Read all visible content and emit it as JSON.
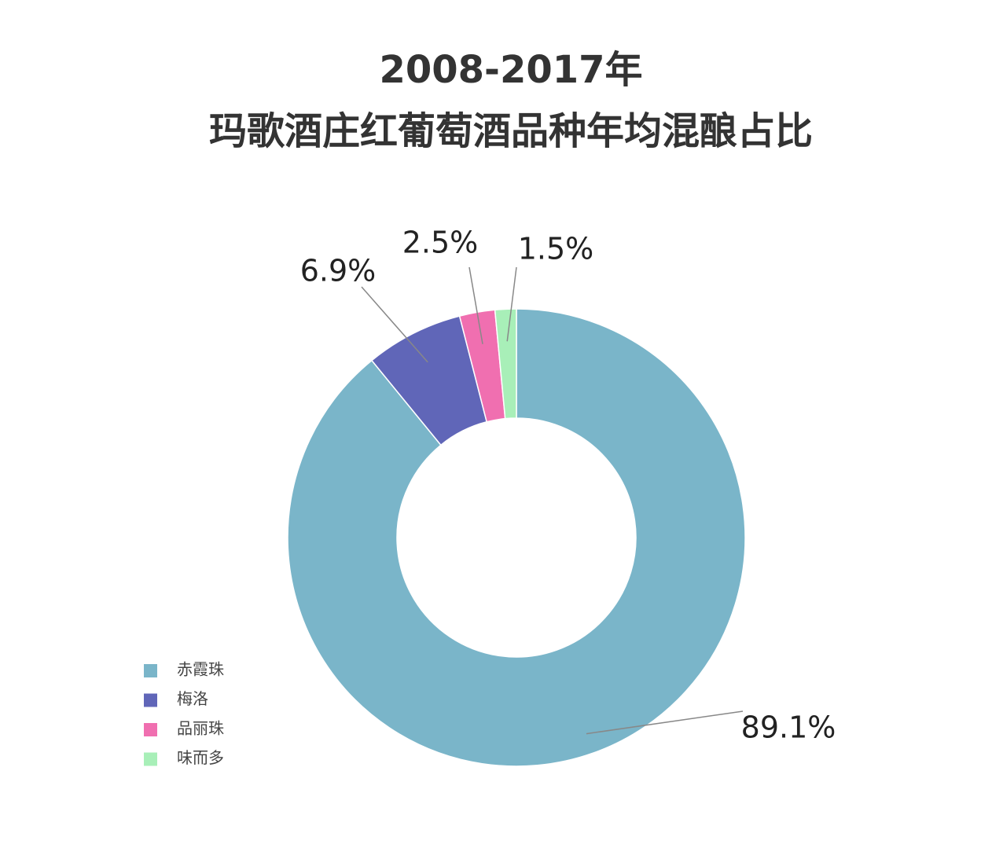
{
  "chart_data": {
    "type": "pie",
    "donut": true,
    "title": [
      "2008-2017年",
      "玛歌酒庄红葡萄酒品种年均混酿占比"
    ],
    "categories": [
      "赤霞珠",
      "梅洛",
      "品丽珠",
      "味而多"
    ],
    "values": [
      89.1,
      6.9,
      2.5,
      1.5
    ],
    "value_labels": [
      "89.1%",
      "6.9%",
      "2.5%",
      "1.5%"
    ],
    "colors": [
      "#7ab5c9",
      "#6066b8",
      "#f06fb0",
      "#a8efb8"
    ],
    "legend": "bottom-left"
  }
}
